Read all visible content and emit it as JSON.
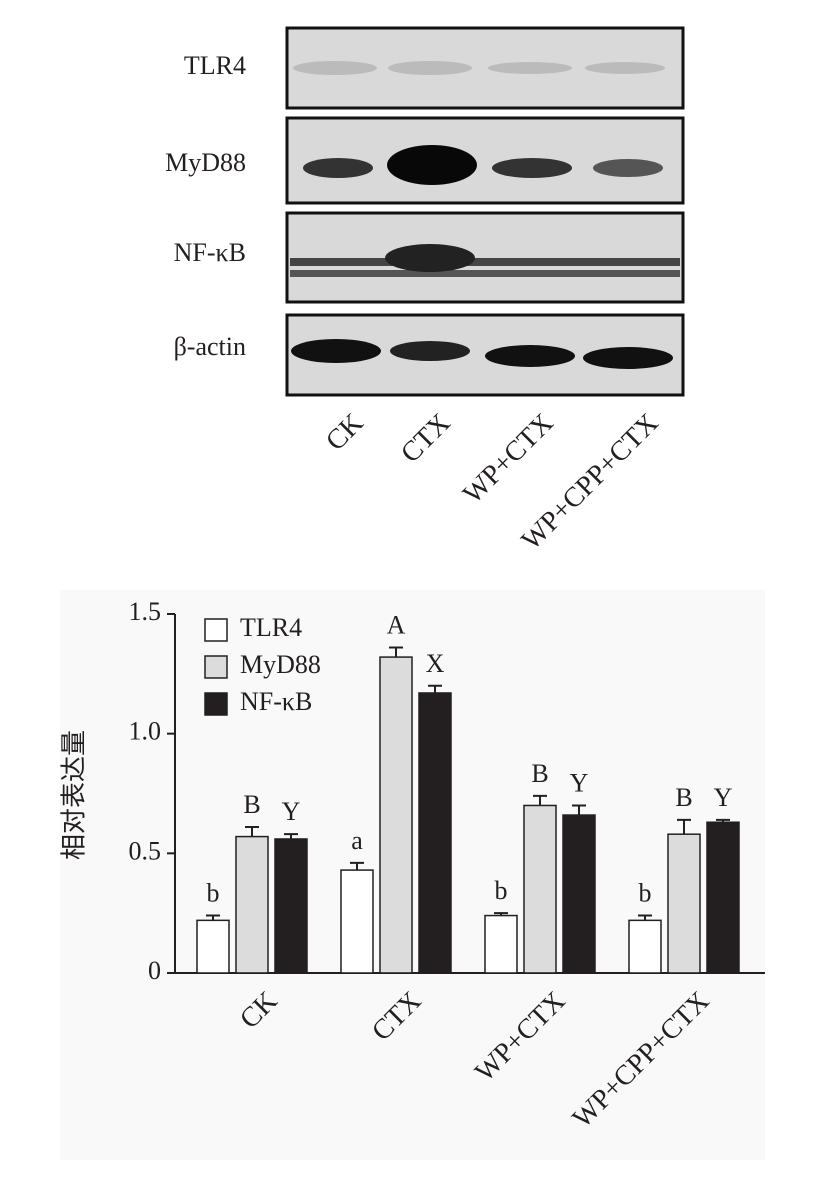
{
  "blot": {
    "rows": [
      "TLR4",
      "MyD88",
      "NF-κB",
      "β-actin"
    ],
    "lanes": [
      "CK",
      "CTX",
      "WP+CTX",
      "WP+CPP+CTX"
    ]
  },
  "chart_data": {
    "type": "bar",
    "ylabel": "相对表达量",
    "categories": [
      "CK",
      "CTX",
      "WP+CTX",
      "WP+CPP+CTX"
    ],
    "series": [
      {
        "name": "TLR4",
        "color": "#ffffff",
        "values": [
          0.22,
          0.43,
          0.24,
          0.22
        ],
        "errors": [
          0.02,
          0.03,
          0.01,
          0.02
        ],
        "letters": [
          "b",
          "a",
          "b",
          "b"
        ]
      },
      {
        "name": "MyD88",
        "color": "#dcdcdc",
        "values": [
          0.57,
          1.32,
          0.7,
          0.58
        ],
        "errors": [
          0.04,
          0.04,
          0.04,
          0.06
        ],
        "letters": [
          "B",
          "A",
          "B",
          "B"
        ]
      },
      {
        "name": "NF-κB",
        "color": "#231f20",
        "values": [
          0.56,
          1.17,
          0.66,
          0.63
        ],
        "errors": [
          0.02,
          0.03,
          0.04,
          0.01
        ],
        "letters": [
          "Y",
          "X",
          "Y",
          "Y"
        ]
      }
    ],
    "ylim": [
      0,
      1.5
    ],
    "yticks": [
      0,
      0.5,
      {
        "value": 1,
        "label": "1.0"
      },
      1.5
    ],
    "legend": "upper left"
  }
}
